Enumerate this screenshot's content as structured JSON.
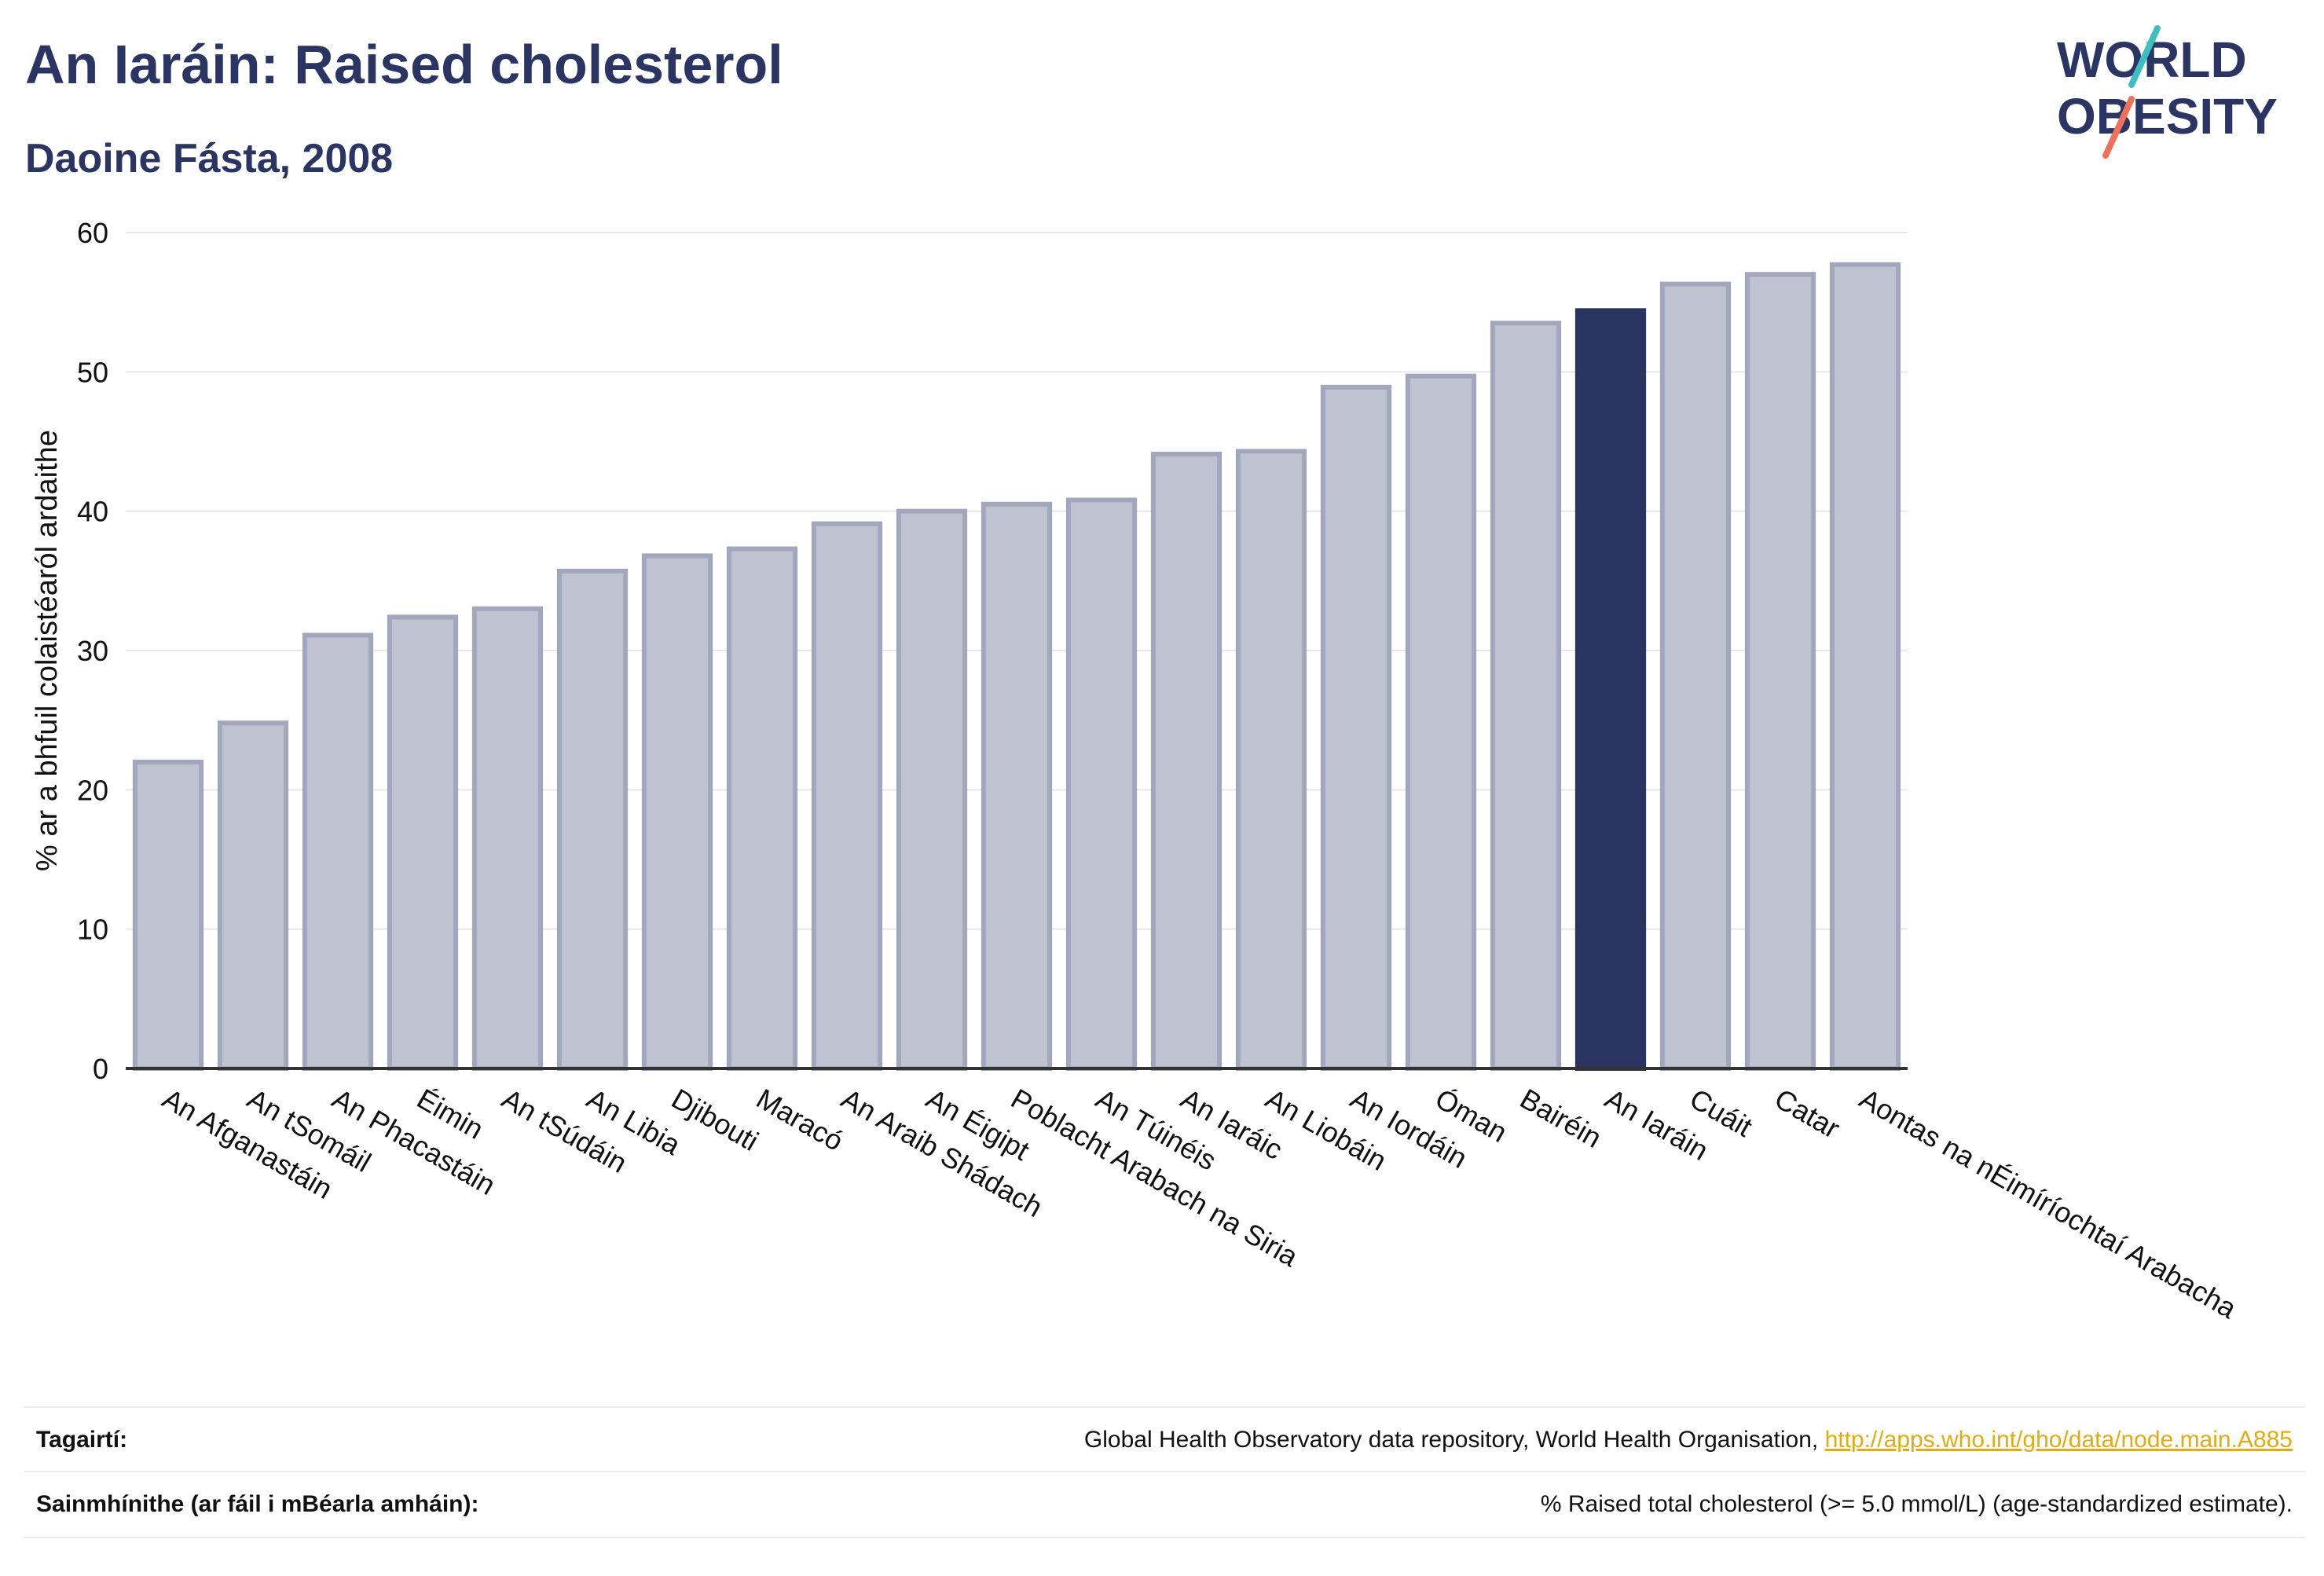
{
  "header": {
    "title": "An Iaráin: Raised cholesterol",
    "subtitle": "Daoine Fásta, 2008"
  },
  "logo": {
    "line1": "WORLD",
    "line2": "OBESITY",
    "icon": "world-obesity-logo"
  },
  "colors": {
    "highlight": "#2a3460",
    "bar_fill": "#bfc2d0",
    "bar_stroke": "#a2a7bd",
    "grid": "#e6e6ec",
    "axis_text": "#111111",
    "link": "#e3ab12"
  },
  "chart_data": {
    "type": "bar",
    "title": "An Iaráin: Raised cholesterol",
    "subtitle": "Daoine Fásta, 2008",
    "xlabel": "",
    "ylabel": "% ar a bhfuil colaistéaról ardaithe",
    "ylim": [
      0,
      60
    ],
    "yticks": [
      0,
      10,
      20,
      30,
      40,
      50,
      60
    ],
    "grid": true,
    "highlight": "An Iaráin",
    "categories": [
      "An Afganastáin",
      "An tSomáil",
      "An Phacastáin",
      "Éimin",
      "An tSúdáin",
      "An Libia",
      "Djibouti",
      "Maracó",
      "An Araib Shádach",
      "An Éigipt",
      "Poblacht Arabach na Siria",
      "An Túinéis",
      "An Iaráic",
      "An Liobáin",
      "An Iordáin",
      "Óman",
      "Bairéin",
      "An Iaráin",
      "Cuáit",
      "Catar",
      "Aontas na nÉimíríochtaí Arabacha"
    ],
    "values": [
      22.0,
      24.8,
      31.1,
      32.4,
      33.0,
      35.7,
      36.8,
      37.3,
      39.1,
      40.0,
      40.5,
      40.8,
      44.1,
      44.3,
      48.9,
      49.7,
      53.5,
      54.4,
      56.3,
      57.0,
      57.7
    ]
  },
  "footer": {
    "references_label": "Tagairtí:",
    "references_text": "Global Health Observatory data repository, World Health Organisation, ",
    "references_link": "http://apps.who.int/gho/data/node.main.A885",
    "definitions_label": "Sainmhínithe (ar fáil i mBéarla amháin):",
    "definitions_text": "% Raised total cholesterol (>= 5.0 mmol/L) (age-standardized estimate)."
  }
}
